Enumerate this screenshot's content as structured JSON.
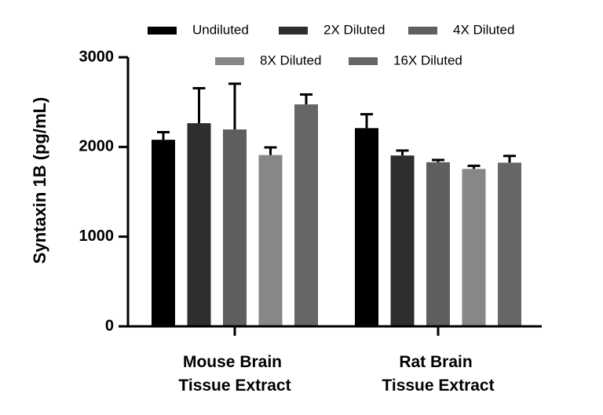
{
  "chart_data": {
    "type": "bar",
    "ylabel": "Syntaxin 1B (pg/mL)",
    "ylim": [
      0,
      3000
    ],
    "yticks": [
      "0",
      "1000",
      "2000",
      "3000"
    ],
    "categories": [
      {
        "line1": "Mouse Brain",
        "line2": "Tissue Extract"
      },
      {
        "line1": "Rat Brain",
        "line2": "Tissue Extract"
      }
    ],
    "series": [
      {
        "name": "Undiluted",
        "color": "#000000",
        "values": [
          2080,
          2210
        ],
        "errors": [
          85,
          155
        ]
      },
      {
        "name": "2X Diluted",
        "color": "#2e2e2e",
        "values": [
          2265,
          1905
        ],
        "errors": [
          390,
          55
        ]
      },
      {
        "name": "4X Diluted",
        "color": "#5f5f5f",
        "values": [
          2195,
          1830
        ],
        "errors": [
          510,
          25
        ]
      },
      {
        "name": "8X Diluted",
        "color": "#878787",
        "values": [
          1910,
          1755
        ],
        "errors": [
          85,
          35
        ]
      },
      {
        "name": "16X Diluted",
        "color": "#666666",
        "values": [
          2475,
          1825
        ],
        "errors": [
          110,
          75
        ]
      }
    ]
  }
}
